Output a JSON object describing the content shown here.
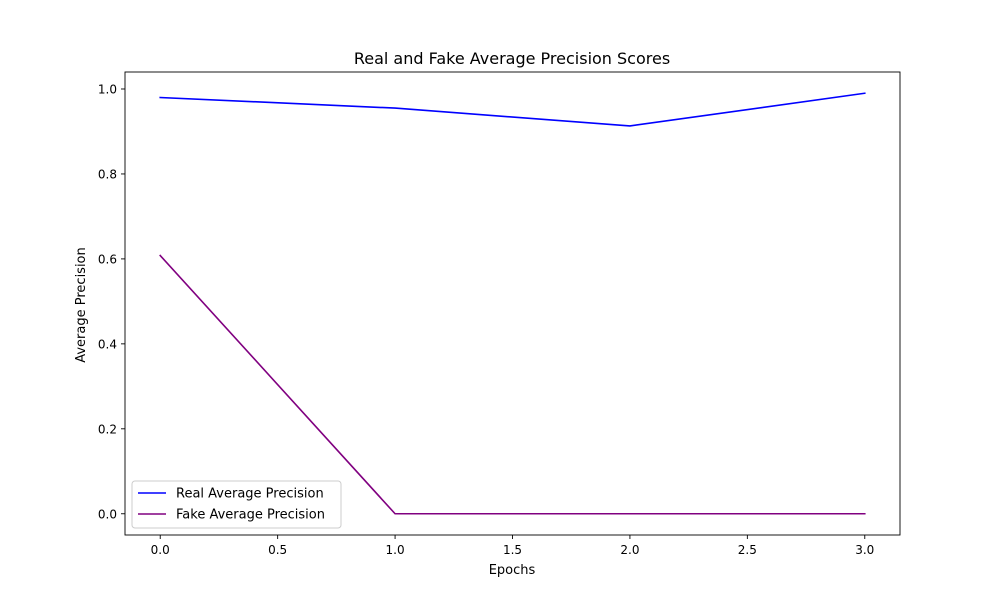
{
  "chart_data": {
    "type": "line",
    "title": "Real and Fake Average Precision Scores",
    "xlabel": "Epochs",
    "ylabel": "Average Precision",
    "xlim": [
      -0.15,
      3.15
    ],
    "ylim": [
      -0.05,
      1.04
    ],
    "x_ticks": [
      0.0,
      0.5,
      1.0,
      1.5,
      2.0,
      2.5,
      3.0
    ],
    "x_tick_labels": [
      "0.0",
      "0.5",
      "1.0",
      "1.5",
      "2.0",
      "2.5",
      "3.0"
    ],
    "y_ticks": [
      0.0,
      0.2,
      0.4,
      0.6,
      0.8,
      1.0
    ],
    "y_tick_labels": [
      "0.0",
      "0.2",
      "0.4",
      "0.6",
      "0.8",
      "1.0"
    ],
    "grid": false,
    "legend_position": "lower-left",
    "x": [
      0,
      1,
      2,
      3
    ],
    "series": [
      {
        "name": "Real Average Precision",
        "color": "#0000ff",
        "values": [
          0.98,
          0.955,
          0.913,
          0.99
        ]
      },
      {
        "name": "Fake Average Precision",
        "color": "#800080",
        "values": [
          0.608,
          0.0,
          0.0,
          0.0
        ]
      }
    ]
  }
}
